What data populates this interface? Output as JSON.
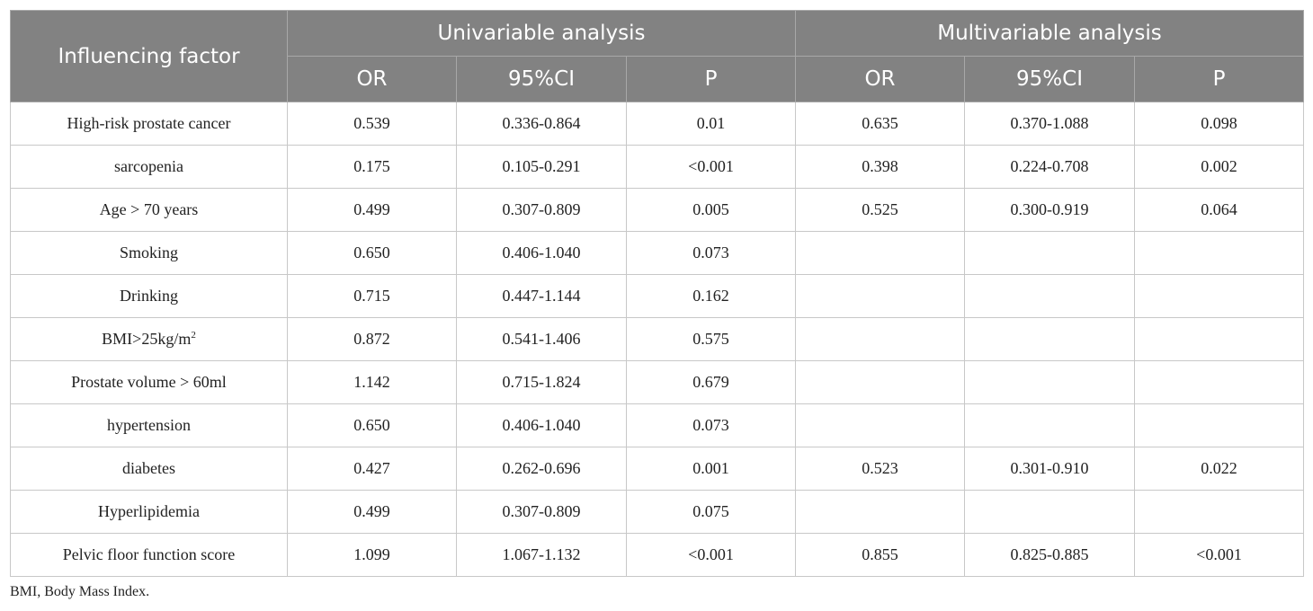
{
  "table": {
    "header": {
      "factor": "Influencing factor",
      "group_univariable": "Univariable analysis",
      "group_multivariable": "Multivariable analysis",
      "sub_columns": [
        "OR",
        "95%CI",
        "P",
        "OR",
        "95%CI",
        "P"
      ]
    },
    "rows": [
      {
        "factor": "High-risk prostate cancer",
        "uni_or": "0.539",
        "uni_ci": "0.336-0.864",
        "uni_p": "0.01",
        "multi_or": "0.635",
        "multi_ci": "0.370-1.088",
        "multi_p": "0.098"
      },
      {
        "factor": "sarcopenia",
        "uni_or": "0.175",
        "uni_ci": "0.105-0.291",
        "uni_p": "<0.001",
        "multi_or": "0.398",
        "multi_ci": "0.224-0.708",
        "multi_p": "0.002"
      },
      {
        "factor": "Age > 70 years",
        "uni_or": "0.499",
        "uni_ci": "0.307-0.809",
        "uni_p": "0.005",
        "multi_or": "0.525",
        "multi_ci": "0.300-0.919",
        "multi_p": "0.064"
      },
      {
        "factor": "Smoking",
        "uni_or": "0.650",
        "uni_ci": "0.406-1.040",
        "uni_p": "0.073",
        "multi_or": "",
        "multi_ci": "",
        "multi_p": ""
      },
      {
        "factor": "Drinking",
        "uni_or": "0.715",
        "uni_ci": "0.447-1.144",
        "uni_p": "0.162",
        "multi_or": "",
        "multi_ci": "",
        "multi_p": ""
      },
      {
        "factor": "BMI>25kg/m",
        "factor_sup": "2",
        "uni_or": "0.872",
        "uni_ci": "0.541-1.406",
        "uni_p": "0.575",
        "multi_or": "",
        "multi_ci": "",
        "multi_p": ""
      },
      {
        "factor": "Prostate volume > 60ml",
        "uni_or": "1.142",
        "uni_ci": "0.715-1.824",
        "uni_p": "0.679",
        "multi_or": "",
        "multi_ci": "",
        "multi_p": ""
      },
      {
        "factor": "hypertension",
        "uni_or": "0.650",
        "uni_ci": "0.406-1.040",
        "uni_p": "0.073",
        "multi_or": "",
        "multi_ci": "",
        "multi_p": ""
      },
      {
        "factor": "diabetes",
        "uni_or": "0.427",
        "uni_ci": "0.262-0.696",
        "uni_p": "0.001",
        "multi_or": "0.523",
        "multi_ci": "0.301-0.910",
        "multi_p": "0.022"
      },
      {
        "factor": "Hyperlipidemia",
        "uni_or": "0.499",
        "uni_ci": "0.307-0.809",
        "uni_p": "0.075",
        "multi_or": "",
        "multi_ci": "",
        "multi_p": ""
      },
      {
        "factor": "Pelvic floor function score",
        "uni_or": "1.099",
        "uni_ci": "1.067-1.132",
        "uni_p": "<0.001",
        "multi_or": "0.855",
        "multi_ci": "0.825-0.885",
        "multi_p": "<0.001"
      }
    ]
  },
  "footnote": "BMI, Body Mass Index."
}
